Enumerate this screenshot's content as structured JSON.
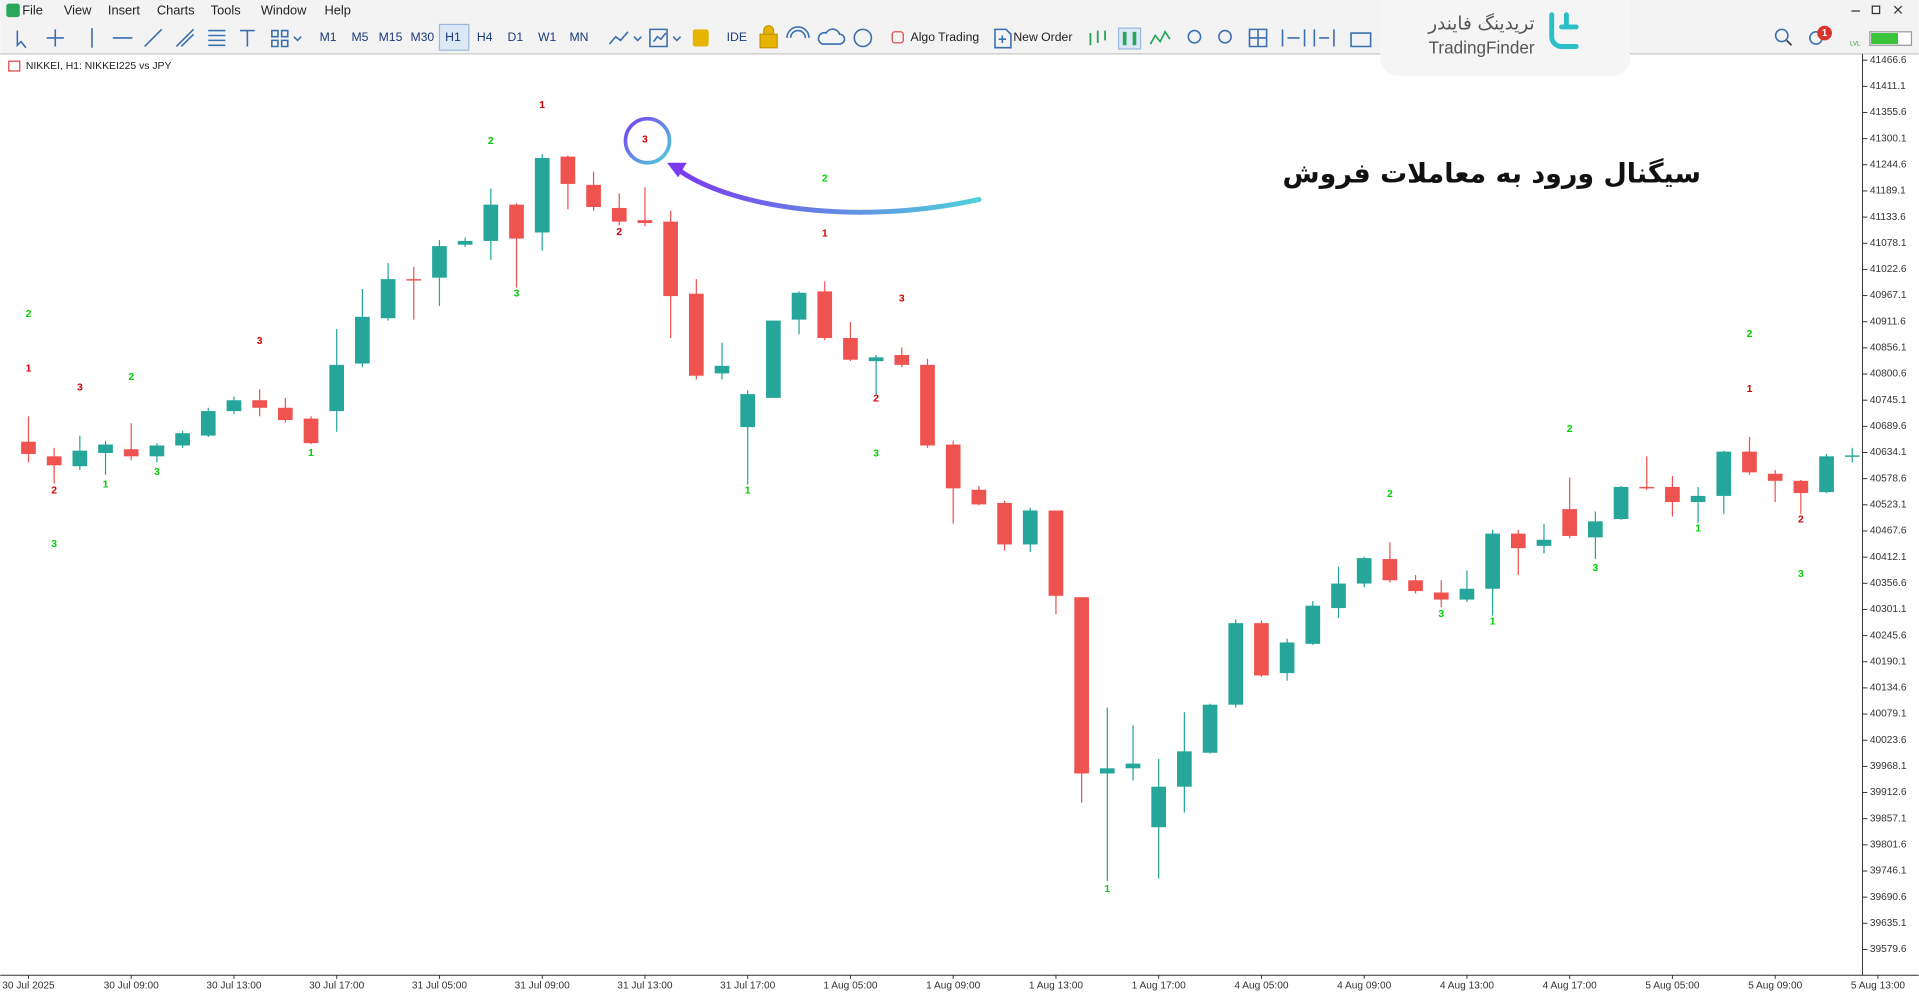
{
  "menu": [
    "File",
    "View",
    "Insert",
    "Charts",
    "Tools",
    "Window",
    "Help"
  ],
  "toolbar": {
    "timeframes": [
      "M1",
      "M5",
      "M15",
      "M30",
      "H1",
      "H4",
      "D1",
      "W1",
      "MN"
    ],
    "active_timeframe": "H1",
    "ide": "IDE",
    "algo_trading": "Algo Trading",
    "new_order": "New Order",
    "notifications": 1,
    "level_label": "LVL"
  },
  "watermark": {
    "persian": "تریدینگ فایندر",
    "latin": "TradingFinder"
  },
  "chart_data": {
    "type": "candlestick",
    "title": "NIKKEI, H1:  NIKKEI225 vs JPY",
    "annotation": "سیگنال ورود به معاملات فروش",
    "up_color": "#26a69a",
    "down_color": "#ef5350",
    "open": [
      40657,
      40626,
      40605,
      40633,
      40641,
      40626,
      40649,
      40670,
      40722,
      40745,
      40729,
      40706,
      40722,
      40823,
      40919,
      41002,
      41005,
      41075,
      41083,
      41160,
      41101,
      41262,
      41202,
      41153,
      41127,
      41124,
      40971,
      40802,
      40688,
      40750,
      40916,
      40976,
      40877,
      40828,
      40841,
      40820,
      40651,
      40555,
      40527,
      40439,
      40511,
      40327,
      39953,
      39964,
      39839,
      39925,
      39997,
      40099,
      40272,
      40166,
      40228,
      40304,
      40356,
      40408,
      40363,
      40337,
      40322,
      40345,
      40462,
      40436,
      40514,
      40454,
      40493,
      40561,
      40561,
      40529,
      40542,
      40636,
      40589,
      40574,
      40550,
      40628
    ],
    "high": [
      40711,
      40644,
      40670,
      40659,
      40696,
      40654,
      40680,
      40729,
      40753,
      40768,
      40750,
      40711,
      40896,
      40981,
      41036,
      41028,
      41085,
      41090,
      41194,
      41163,
      41267,
      41264,
      41230,
      41184,
      41197,
      41147,
      41002,
      40867,
      40766,
      40914,
      40976,
      40997,
      40911,
      40841,
      40857,
      40833,
      40659,
      40563,
      40532,
      40517,
      40511,
      40327,
      40093,
      40055,
      39984,
      40083,
      40101,
      40280,
      40278,
      40239,
      40319,
      40392,
      40413,
      40444,
      40374,
      40363,
      40384,
      40470,
      40470,
      40483,
      40581,
      40509,
      40563,
      40626,
      40584,
      40561,
      40638,
      40667,
      40597,
      40576,
      40631,
      40644
    ],
    "low": [
      40613,
      40568,
      40597,
      40587,
      40618,
      40613,
      40644,
      40667,
      40716,
      40711,
      40698,
      40652,
      40678,
      40815,
      40914,
      40916,
      40945,
      41070,
      41043,
      40984,
      41062,
      41150,
      41147,
      41116,
      41114,
      40877,
      40789,
      40789,
      40566,
      40750,
      40885,
      40872,
      40828,
      40758,
      40815,
      40644,
      40483,
      40522,
      40426,
      40423,
      40291,
      39891,
      39725,
      39938,
      39730,
      39870,
      39995,
      40093,
      40158,
      40150,
      40226,
      40283,
      40348,
      40358,
      40335,
      40306,
      40317,
      40288,
      40374,
      40420,
      40452,
      40408,
      40491,
      40555,
      40498,
      40485,
      40504,
      40587,
      40529,
      40504,
      40548,
      40613
    ],
    "close": [
      40631,
      40607,
      40638,
      40651,
      40626,
      40649,
      40675,
      40722,
      40745,
      40729,
      40703,
      40654,
      40820,
      40922,
      41002,
      40999,
      41072,
      41083,
      41160,
      41088,
      41259,
      41204,
      41155,
      41124,
      41121,
      40966,
      40797,
      40818,
      40758,
      40914,
      40973,
      40877,
      40831,
      40836,
      40820,
      40649,
      40558,
      40524,
      40439,
      40511,
      40330,
      39953,
      39964,
      39974,
      39925,
      40000,
      40099,
      40272,
      40161,
      40231,
      40309,
      40356,
      40410,
      40363,
      40340,
      40322,
      40345,
      40462,
      40431,
      40449,
      40457,
      40488,
      40561,
      40558,
      40529,
      40542,
      40636,
      40592,
      40574,
      40548,
      40626,
      40628
    ],
    "xlim": [
      -1.1,
      71.4
    ],
    "xticks": [
      {
        "value": 0,
        "label": "30 Jul 2025"
      },
      {
        "value": 4,
        "label": "30 Jul 09:00"
      },
      {
        "value": 8,
        "label": "30 Jul 13:00"
      },
      {
        "value": 12,
        "label": "30 Jul 17:00"
      },
      {
        "value": 16,
        "label": "31 Jul 05:00"
      },
      {
        "value": 20,
        "label": "31 Jul 09:00"
      },
      {
        "value": 24,
        "label": "31 Jul 13:00"
      },
      {
        "value": 28,
        "label": "31 Jul 17:00"
      },
      {
        "value": 32,
        "label": "1 Aug 05:00"
      },
      {
        "value": 36,
        "label": "1 Aug 09:00"
      },
      {
        "value": 40,
        "label": "1 Aug 13:00"
      },
      {
        "value": 44,
        "label": "1 Aug 17:00"
      },
      {
        "value": 48,
        "label": "4 Aug 05:00"
      },
      {
        "value": 52,
        "label": "4 Aug 09:00"
      },
      {
        "value": 56,
        "label": "4 Aug 13:00"
      },
      {
        "value": 60,
        "label": "4 Aug 17:00"
      },
      {
        "value": 64,
        "label": "5 Aug 05:00"
      },
      {
        "value": 68,
        "label": "5 Aug 09:00"
      },
      {
        "value": 72,
        "label": "5 Aug 13:00"
      }
    ],
    "ylim": [
      39525,
      41480
    ],
    "yticks": [
      41466.6,
      41411.1,
      41355.6,
      41300.1,
      41244.6,
      41189.1,
      41133.6,
      41078.1,
      41022.6,
      40967.1,
      40911.6,
      40856.1,
      40800.6,
      40745.1,
      40689.6,
      40634.1,
      40578.6,
      40523.1,
      40467.6,
      40412.1,
      40356.6,
      40301.1,
      40245.6,
      40190.1,
      40134.6,
      40079.1,
      40023.6,
      39968.1,
      39912.6,
      39857.1,
      39801.6,
      39746.1,
      39690.6,
      39635.1,
      39579.6
    ],
    "grid": false,
    "signals": [
      {
        "label": "1",
        "candle": 20,
        "price": 41371,
        "color": "#d50000"
      },
      {
        "label": "2",
        "candle": 18,
        "price": 41295,
        "color": "#00d000"
      },
      {
        "label": "3",
        "candle": 24,
        "price": 41298,
        "color": "#d50000"
      },
      {
        "label": "2",
        "candle": 31,
        "price": 41215,
        "color": "#00d000"
      },
      {
        "label": "1",
        "candle": 31,
        "price": 41098,
        "color": "#d50000"
      },
      {
        "label": "3",
        "candle": 34,
        "price": 40960,
        "color": "#d50000"
      },
      {
        "label": "2",
        "candle": 0,
        "price": 40927,
        "color": "#00d000"
      },
      {
        "label": "1",
        "candle": 0,
        "price": 40812,
        "color": "#d50000"
      },
      {
        "label": "3",
        "candle": 2,
        "price": 40771,
        "color": "#d50000"
      },
      {
        "label": "2",
        "candle": 4,
        "price": 40794,
        "color": "#00d000"
      },
      {
        "label": "3",
        "candle": 9,
        "price": 40870,
        "color": "#d50000"
      },
      {
        "label": "1",
        "candle": 11,
        "price": 40633,
        "color": "#00d000"
      },
      {
        "label": "2",
        "candle": 1,
        "price": 40553,
        "color": "#d50000"
      },
      {
        "label": "1",
        "candle": 3,
        "price": 40566,
        "color": "#00d000"
      },
      {
        "label": "3",
        "candle": 5,
        "price": 40592,
        "color": "#00d000"
      },
      {
        "label": "3",
        "candle": 1,
        "price": 40439,
        "color": "#00d000"
      },
      {
        "label": "3",
        "candle": 19,
        "price": 40971,
        "color": "#00d000"
      },
      {
        "label": "2",
        "candle": 23,
        "price": 41101,
        "color": "#d50000"
      },
      {
        "label": "2",
        "candle": 33,
        "price": 40748,
        "color": "#d50000"
      },
      {
        "label": "3",
        "candle": 33,
        "price": 40631,
        "color": "#00d000"
      },
      {
        "label": "1",
        "candle": 28,
        "price": 40553,
        "color": "#00d000"
      },
      {
        "label": "1",
        "candle": 42,
        "price": 39707,
        "color": "#00d000"
      },
      {
        "label": "2",
        "candle": 53,
        "price": 40545,
        "color": "#00d000"
      },
      {
        "label": "3",
        "candle": 55,
        "price": 40291,
        "color": "#00d000"
      },
      {
        "label": "1",
        "candle": 57,
        "price": 40275,
        "color": "#00d000"
      },
      {
        "label": "2",
        "candle": 60,
        "price": 40683,
        "color": "#00d000"
      },
      {
        "label": "3",
        "candle": 61,
        "price": 40389,
        "color": "#00d000"
      },
      {
        "label": "1",
        "candle": 65,
        "price": 40472,
        "color": "#00d000"
      },
      {
        "label": "2",
        "candle": 67,
        "price": 40885,
        "color": "#00d000"
      },
      {
        "label": "1",
        "candle": 67,
        "price": 40768,
        "color": "#d50000"
      },
      {
        "label": "2",
        "candle": 69,
        "price": 40491,
        "color": "#d50000"
      },
      {
        "label": "3",
        "candle": 69,
        "price": 40376,
        "color": "#00d000"
      }
    ]
  }
}
